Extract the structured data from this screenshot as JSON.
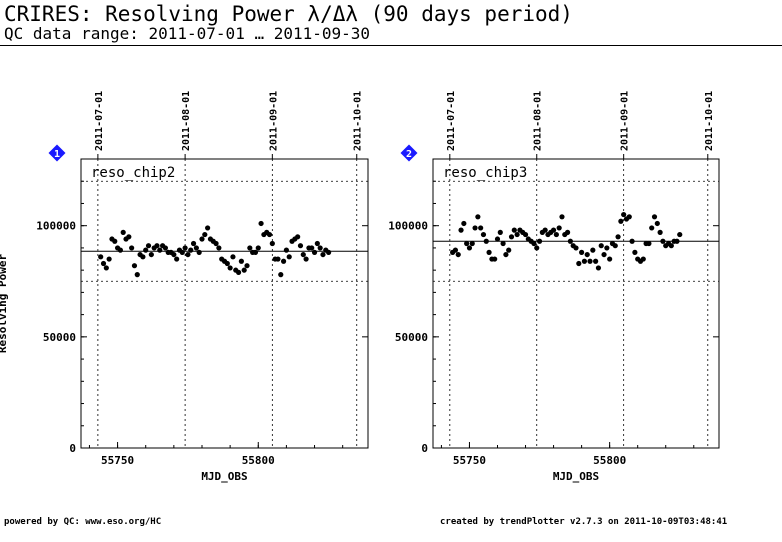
{
  "header": {
    "title": "CRIRES: Resolving Power λ/Δλ (90 days period)",
    "subtitle": "QC data range: 2011-07-01 … 2011-09-30"
  },
  "footer": {
    "left": "powered by QC: www.eso.org/HC",
    "right": "created by trendPlotter v2.7.3 on 2011-10-09T03:48:41"
  },
  "colors": {
    "marker": "#1a1aff",
    "marker_text": "#ffffff",
    "axis": "#000000"
  },
  "chart_data": [
    {
      "type": "scatter",
      "badge": "1",
      "label": "reso_chip2",
      "xlabel": "MJD_OBS",
      "ylabel": "Resolving Power",
      "xlim": [
        55737,
        55839
      ],
      "ylim": [
        0,
        130000
      ],
      "xticks": [
        55750,
        55800
      ],
      "yticks": [
        0,
        50000,
        100000
      ],
      "top_dates": [
        {
          "label": "2011-07-01",
          "x": 55743
        },
        {
          "label": "2011-08-01",
          "x": 55774
        },
        {
          "label": "2011-09-01",
          "x": 55805
        },
        {
          "label": "2011-10-01",
          "x": 55835
        }
      ],
      "reference_line": 88500,
      "limits": [
        75000,
        120000
      ],
      "grid": "dotted",
      "x": [
        55744,
        55745,
        55746,
        55747,
        55748,
        55749,
        55750,
        55751,
        55752,
        55753,
        55754,
        55755,
        55756,
        55757,
        55758,
        55759,
        55760,
        55761,
        55762,
        55763,
        55764,
        55765,
        55766,
        55767,
        55768,
        55769,
        55770,
        55771,
        55772,
        55773,
        55774,
        55775,
        55776,
        55777,
        55778,
        55779,
        55780,
        55781,
        55782,
        55783,
        55784,
        55785,
        55786,
        55787,
        55788,
        55789,
        55790,
        55791,
        55792,
        55793,
        55794,
        55795,
        55796,
        55797,
        55798,
        55799,
        55800,
        55801,
        55802,
        55803,
        55804,
        55805,
        55806,
        55807,
        55808,
        55809,
        55810,
        55811,
        55812,
        55813,
        55814,
        55815,
        55816,
        55817,
        55818,
        55819,
        55820,
        55821,
        55822,
        55823,
        55824,
        55825
      ],
      "y": [
        86000,
        83000,
        81000,
        85000,
        94000,
        93000,
        90000,
        89000,
        97000,
        94000,
        95000,
        90000,
        82000,
        78000,
        87000,
        86000,
        89000,
        91000,
        87000,
        90000,
        91000,
        89000,
        91000,
        90000,
        88000,
        88000,
        87000,
        85000,
        89000,
        88000,
        90000,
        87000,
        89000,
        92000,
        90000,
        88000,
        94000,
        96000,
        99000,
        94000,
        93000,
        92000,
        90000,
        85000,
        84000,
        83000,
        81000,
        86000,
        80000,
        79000,
        84000,
        80000,
        82000,
        90000,
        88000,
        88000,
        90000,
        101000,
        96000,
        97000,
        96000,
        92000,
        85000,
        85000,
        78000,
        84000,
        89000,
        86000,
        93000,
        94000,
        95000,
        91000,
        87000,
        85000,
        90000,
        90000,
        88000,
        92000,
        90000,
        87000,
        89000,
        88000
      ]
    },
    {
      "type": "scatter",
      "badge": "2",
      "label": "reso_chip3",
      "xlabel": "MJD_OBS",
      "ylabel": "",
      "xlim": [
        55737,
        55839
      ],
      "ylim": [
        0,
        130000
      ],
      "xticks": [
        55750,
        55800
      ],
      "yticks": [
        0,
        50000,
        100000
      ],
      "top_dates": [
        {
          "label": "2011-07-01",
          "x": 55743
        },
        {
          "label": "2011-08-01",
          "x": 55774
        },
        {
          "label": "2011-09-01",
          "x": 55805
        },
        {
          "label": "2011-10-01",
          "x": 55835
        }
      ],
      "reference_line": 93000,
      "limits": [
        75000,
        120000
      ],
      "grid": "dotted",
      "x": [
        55744,
        55745,
        55746,
        55747,
        55748,
        55749,
        55750,
        55751,
        55752,
        55753,
        55754,
        55755,
        55756,
        55757,
        55758,
        55759,
        55760,
        55761,
        55762,
        55763,
        55764,
        55765,
        55766,
        55767,
        55768,
        55769,
        55770,
        55771,
        55772,
        55773,
        55774,
        55775,
        55776,
        55777,
        55778,
        55779,
        55780,
        55781,
        55782,
        55783,
        55784,
        55785,
        55786,
        55787,
        55788,
        55789,
        55790,
        55791,
        55792,
        55793,
        55794,
        55795,
        55796,
        55797,
        55798,
        55799,
        55800,
        55801,
        55802,
        55803,
        55804,
        55805,
        55806,
        55807,
        55808,
        55809,
        55810,
        55811,
        55812,
        55813,
        55814,
        55815,
        55816,
        55817,
        55818,
        55819,
        55820,
        55821,
        55822,
        55823,
        55824,
        55825
      ],
      "y": [
        88000,
        89000,
        87000,
        98000,
        101000,
        92000,
        90000,
        92000,
        99000,
        104000,
        99000,
        96000,
        93000,
        88000,
        85000,
        85000,
        94000,
        97000,
        92000,
        87000,
        89000,
        95000,
        98000,
        96000,
        98000,
        97000,
        96000,
        94000,
        93000,
        92000,
        90000,
        93000,
        97000,
        98000,
        96000,
        97000,
        98000,
        96000,
        99000,
        104000,
        96000,
        97000,
        93000,
        91000,
        90000,
        83000,
        88000,
        84000,
        87000,
        84000,
        89000,
        84000,
        81000,
        91000,
        87000,
        90000,
        85000,
        92000,
        91000,
        95000,
        102000,
        105000,
        103000,
        104000,
        93000,
        88000,
        85000,
        84000,
        85000,
        92000,
        92000,
        99000,
        104000,
        101000,
        97000,
        93000,
        91000,
        92000,
        91000,
        93000,
        93000,
        96000
      ]
    }
  ]
}
